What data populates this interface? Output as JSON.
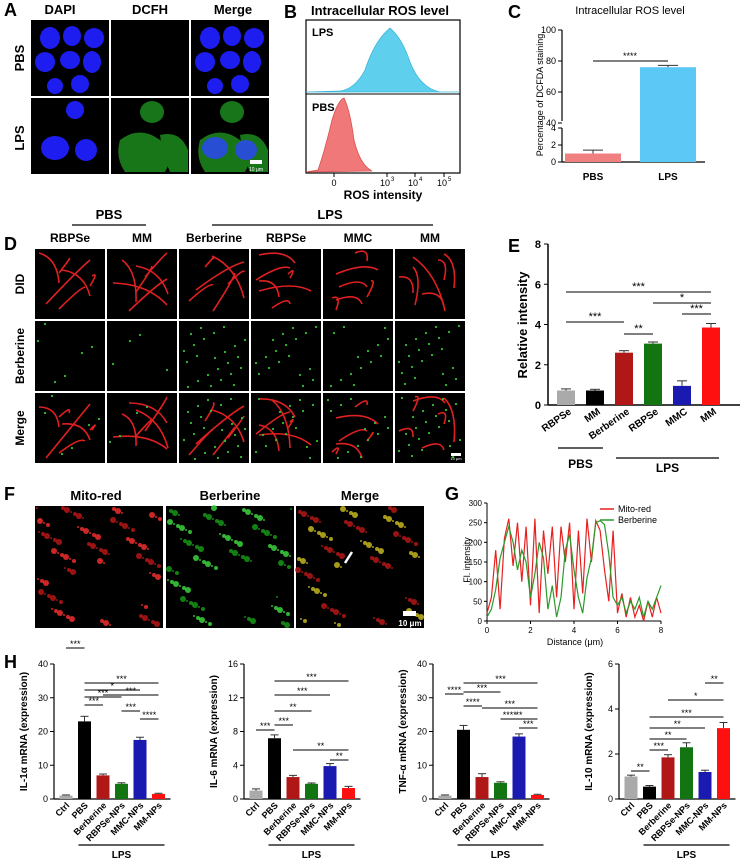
{
  "panels": {
    "A": {
      "letter": "A",
      "columns": [
        "DAPI",
        "DCFH",
        "Merge"
      ],
      "rows": [
        "PBS",
        "LPS"
      ],
      "scale": "10 μm"
    },
    "B": {
      "letter": "B",
      "title": "Intracellular ROS level",
      "labels": [
        "LPS",
        "PBS"
      ],
      "xlabel": "ROS intensity",
      "xticks": [
        "0",
        "10",
        "10",
        "10",
        "10"
      ],
      "xexp": [
        "",
        "3",
        "4",
        "5"
      ]
    },
    "C": {
      "letter": "C",
      "title": "Intracellular ROS level",
      "ylabel": "Percentage of DCFDA staining",
      "sig": "****"
    },
    "D": {
      "letter": "D",
      "group1": "PBS",
      "group2": "LPS",
      "columns": [
        "RBPSe",
        "MM",
        "Berberine",
        "RBPSe",
        "MMC",
        "MM"
      ],
      "rows": [
        "DID",
        "Berberine",
        "Merge"
      ],
      "scale": "10 μm"
    },
    "E": {
      "letter": "E",
      "group1": "PBS",
      "group2": "LPS",
      "ylabel": "Relative intensity",
      "sig": [
        "***",
        "***",
        "*",
        "***",
        "**"
      ]
    },
    "F": {
      "letter": "F",
      "columns": [
        "Mito-red",
        "Berberine",
        "Merge"
      ],
      "scale": "10 μm"
    },
    "G": {
      "letter": "G",
      "ylabel": "Fl. intensity",
      "xlabel": "Distance (μm)"
    },
    "H": {
      "letter": "H",
      "group": "LPS"
    }
  },
  "chart_data": [
    {
      "id": "C",
      "type": "bar",
      "categories": [
        "PBS",
        "LPS"
      ],
      "values": [
        1,
        76
      ],
      "errors": [
        0.4,
        1.2
      ],
      "colors": [
        "#f08080",
        "#5bc8f5"
      ],
      "title": "Intracellular ROS level",
      "ylabel": "Percentage of DCFDA staining",
      "yticks_low": [
        0,
        2,
        4
      ],
      "yticks_high": [
        40,
        60,
        80,
        100
      ]
    },
    {
      "id": "B",
      "type": "area",
      "series": [
        {
          "name": "LPS",
          "color": "#5ed0ee"
        },
        {
          "name": "PBS",
          "color": "#f07878"
        }
      ],
      "xlabel": "ROS intensity"
    },
    {
      "id": "E",
      "type": "bar",
      "categories": [
        "RBPSe",
        "MM",
        "Berberine",
        "RBPSe",
        "MMC",
        "MM"
      ],
      "values": [
        0.72,
        0.72,
        2.6,
        3.05,
        0.95,
        3.85
      ],
      "errors": [
        0.08,
        0.06,
        0.1,
        0.08,
        0.25,
        0.2
      ],
      "colors": [
        "#aaaaaa",
        "#000000",
        "#b01818",
        "#127512",
        "#1a1ab0",
        "#ff1010"
      ],
      "ylabel": "Relative intensity",
      "ylim": [
        0,
        8
      ],
      "yticks": [
        0,
        2,
        4,
        6,
        8
      ]
    },
    {
      "id": "G",
      "type": "line",
      "xlabel": "Distance (μm)",
      "ylabel": "Fl. intensity",
      "xlim": [
        0,
        8
      ],
      "ylim": [
        0,
        300
      ],
      "xticks": [
        0,
        2,
        4,
        6,
        8
      ],
      "yticks": [
        0,
        50,
        100,
        150,
        200,
        250,
        300
      ],
      "series": [
        {
          "name": "Mito-red",
          "color": "#e82020",
          "x": [
            0,
            0.2,
            0.4,
            0.6,
            0.8,
            1.0,
            1.2,
            1.4,
            1.6,
            1.8,
            2.0,
            2.2,
            2.4,
            2.6,
            2.8,
            3.0,
            3.2,
            3.4,
            3.6,
            3.8,
            4.0,
            4.2,
            4.4,
            4.6,
            4.8,
            5.0,
            5.2,
            5.4,
            5.6,
            5.8,
            6.0,
            6.2,
            6.4,
            6.6,
            6.8,
            7.0,
            7.2,
            7.4,
            7.6,
            7.8,
            8.0
          ],
          "y": [
            20,
            60,
            180,
            30,
            210,
            260,
            140,
            250,
            100,
            240,
            40,
            260,
            20,
            230,
            120,
            240,
            60,
            240,
            150,
            250,
            30,
            230,
            70,
            260,
            150,
            255,
            230,
            130,
            50,
            230,
            20,
            70,
            10,
            60,
            10,
            40,
            0,
            50,
            10,
            60,
            20
          ]
        },
        {
          "name": "Berberine",
          "color": "#2a9a2a",
          "x": [
            0,
            0.2,
            0.4,
            0.6,
            0.8,
            1.0,
            1.2,
            1.4,
            1.6,
            1.8,
            2.0,
            2.2,
            2.4,
            2.6,
            2.8,
            3.0,
            3.2,
            3.4,
            3.6,
            3.8,
            4.0,
            4.2,
            4.4,
            4.6,
            4.8,
            5.0,
            5.2,
            5.4,
            5.6,
            5.8,
            6.0,
            6.2,
            6.4,
            6.6,
            6.8,
            7.0,
            7.2,
            7.4,
            7.6,
            7.8,
            8.0
          ],
          "y": [
            10,
            30,
            80,
            160,
            200,
            240,
            200,
            130,
            180,
            150,
            60,
            120,
            200,
            160,
            30,
            90,
            10,
            60,
            180,
            220,
            130,
            60,
            20,
            110,
            160,
            250,
            255,
            245,
            170,
            60,
            40,
            60,
            20,
            50,
            30,
            60,
            10,
            50,
            30,
            60,
            90
          ]
        }
      ]
    },
    {
      "id": "H1",
      "type": "bar",
      "categories": [
        "Ctrl",
        "PBS",
        "Berberine",
        "RBPSe-NPs",
        "MMC-NPs",
        "MM-NPs"
      ],
      "values": [
        1,
        23,
        7,
        4.5,
        17.5,
        1.5
      ],
      "errors": [
        0.2,
        1.5,
        0.4,
        0.3,
        0.8,
        0.2
      ],
      "ylabel": "IL-1α mRNA (expression)",
      "ylim": [
        0,
        40
      ],
      "yticks": [
        0,
        10,
        20,
        30,
        40
      ],
      "sig": [
        "***",
        "***",
        "*",
        "***",
        "***",
        "***",
        "***",
        "****"
      ]
    },
    {
      "id": "H2",
      "type": "bar",
      "categories": [
        "Ctrl",
        "PBS",
        "Berberine",
        "RBPSe-NPs",
        "MMC-NPs",
        "MM-NPs"
      ],
      "values": [
        1,
        7.2,
        2.6,
        1.8,
        3.9,
        1.3
      ],
      "errors": [
        0.2,
        0.4,
        0.2,
        0.1,
        0.3,
        0.2
      ],
      "ylabel": "IL-6 mRNA (expression)",
      "ylim": [
        0,
        16
      ],
      "yticks": [
        0,
        4,
        8,
        12,
        16
      ],
      "sig": [
        "***",
        "***",
        "***",
        "**",
        "***",
        "**",
        "**"
      ]
    },
    {
      "id": "H3",
      "type": "bar",
      "categories": [
        "Ctrl",
        "PBS",
        "Berberine",
        "RBPSe-NPs",
        "MMC-NPs",
        "MM-NPs"
      ],
      "values": [
        1,
        20.5,
        6.5,
        4.8,
        18.5,
        1.2
      ],
      "errors": [
        0.2,
        1.3,
        1.0,
        0.3,
        0.8,
        0.2
      ],
      "ylabel": "TNF-α mRNA (expression)",
      "ylim": [
        0,
        40
      ],
      "yticks": [
        0,
        10,
        20,
        30,
        40
      ],
      "sig": [
        "****",
        "***",
        "***",
        "****",
        "***",
        "**",
        "***",
        "****"
      ]
    },
    {
      "id": "H4",
      "type": "bar",
      "categories": [
        "Ctrl",
        "PBS",
        "Berberine",
        "RBPSe-NPs",
        "MMC-NPs",
        "MM-NPs"
      ],
      "values": [
        1,
        0.55,
        1.85,
        2.3,
        1.2,
        3.15
      ],
      "errors": [
        0.06,
        0.05,
        0.12,
        0.2,
        0.08,
        0.25
      ],
      "ylabel": "IL-10 mRNA (expression)",
      "ylim": [
        0,
        6
      ],
      "yticks": [
        0,
        2,
        4,
        6
      ],
      "sig": [
        "**",
        "***",
        "**",
        "**",
        "***",
        "*",
        "**"
      ]
    }
  ],
  "h_colors": [
    "#aaaaaa",
    "#000000",
    "#b01818",
    "#127512",
    "#1a1ab0",
    "#ff1010"
  ]
}
